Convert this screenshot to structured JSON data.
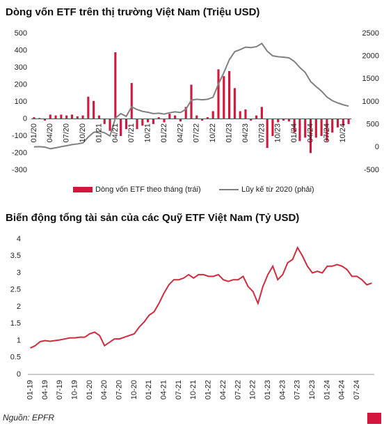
{
  "chart_data": [
    {
      "type": "combo",
      "title": "Dòng vốn ETF trên thị trường Việt Nam (Triệu USD)",
      "categories": [
        "01/20",
        null,
        null,
        "04/20",
        null,
        null,
        "07/20",
        null,
        null,
        "10/20",
        null,
        null,
        "01/21",
        null,
        null,
        "04/21",
        null,
        null,
        "07/21",
        null,
        null,
        "10/21",
        null,
        null,
        "01/22",
        null,
        null,
        "04/22",
        null,
        null,
        "07/22",
        null,
        null,
        "10/22",
        null,
        null,
        "01/23",
        null,
        null,
        "04/23",
        null,
        null,
        "07/23",
        null,
        null,
        "10/23",
        null,
        null,
        "01/24",
        null,
        null,
        "04/24",
        null,
        null,
        "07/24",
        null,
        null,
        "10/24",
        null
      ],
      "series": [
        {
          "name": "Dòng vốn ETF theo tháng (trái)",
          "type": "bar",
          "color": "#d3163c",
          "values": [
            10,
            5,
            -10,
            25,
            20,
            25,
            20,
            25,
            15,
            20,
            130,
            105,
            20,
            -30,
            -70,
            390,
            -100,
            -60,
            210,
            -60,
            -40,
            -20,
            -30,
            10,
            -20,
            30,
            20,
            -15,
            70,
            200,
            20,
            -10,
            10,
            45,
            290,
            250,
            280,
            180,
            45,
            55,
            -10,
            20,
            70,
            -170,
            -100,
            -20,
            -10,
            -15,
            -80,
            -130,
            -110,
            -200,
            -110,
            -100,
            -130,
            -80,
            -50,
            -40,
            -30
          ]
        },
        {
          "name": "Lũy kế từ 2020 (phải)",
          "type": "line",
          "axis": "y2",
          "color": "#808080",
          "values": [
            10,
            15,
            5,
            -30,
            -10,
            15,
            35,
            60,
            75,
            95,
            225,
            330,
            350,
            320,
            250,
            640,
            740,
            680,
            890,
            830,
            790,
            770,
            740,
            750,
            730,
            760,
            780,
            765,
            835,
            1035,
            1055,
            1045,
            1055,
            1100,
            1390,
            1640,
            1920,
            2100,
            2145,
            2200,
            2190,
            2210,
            2280,
            2110,
            2010,
            1990,
            1980,
            1965,
            1885,
            1755,
            1645,
            1445,
            1335,
            1235,
            1105,
            1025,
            975,
            935,
            905
          ]
        }
      ],
      "ylim": [
        -300,
        500
      ],
      "yticks": [
        -300,
        -200,
        -100,
        0,
        100,
        200,
        300,
        400,
        500
      ],
      "y2lim": [
        -500,
        2500
      ],
      "y2ticks": [
        -500,
        0,
        500,
        1000,
        1500,
        2000,
        2500
      ],
      "legend": "bottom"
    },
    {
      "type": "line",
      "title": "Biến động tổng tài sản của các Quỹ ETF Việt Nam (Tỷ USD)",
      "categories": [
        "01-19",
        null,
        null,
        "04-19",
        null,
        null,
        "07-19",
        null,
        null,
        "10-19",
        null,
        null,
        "01-20",
        null,
        null,
        "04-20",
        null,
        null,
        "07-20",
        null,
        null,
        "10-20",
        null,
        null,
        "01-21",
        null,
        null,
        "04-21",
        null,
        null,
        "07-21",
        null,
        null,
        "10-21",
        null,
        null,
        "01-22",
        null,
        null,
        "04-22",
        null,
        null,
        "07-22",
        null,
        null,
        "10-22",
        null,
        null,
        "01-23",
        null,
        null,
        "04-23",
        null,
        null,
        "07-23",
        null,
        null,
        "10-23",
        null,
        null,
        "01-24",
        null,
        null,
        "04-24",
        null,
        null,
        "07-24",
        null,
        null,
        null
      ],
      "series": [
        {
          "name": null,
          "color": "#d42a3c",
          "values": [
            0.78,
            0.85,
            0.97,
            1.0,
            0.98,
            1.0,
            1.02,
            1.05,
            1.08,
            1.08,
            1.1,
            1.1,
            1.2,
            1.25,
            1.15,
            0.85,
            0.95,
            1.05,
            1.05,
            1.1,
            1.15,
            1.2,
            1.4,
            1.55,
            1.75,
            1.85,
            2.1,
            2.4,
            2.65,
            2.8,
            2.8,
            2.85,
            2.95,
            2.85,
            2.95,
            2.95,
            2.9,
            2.9,
            2.95,
            2.8,
            2.75,
            2.8,
            2.8,
            2.9,
            2.6,
            2.45,
            2.1,
            2.6,
            2.95,
            3.2,
            2.8,
            2.95,
            3.3,
            3.4,
            3.75,
            3.5,
            3.2,
            3.0,
            3.05,
            3.0,
            3.2,
            3.2,
            3.25,
            3.2,
            3.1,
            2.9,
            2.9,
            2.8,
            2.65,
            2.7
          ]
        }
      ],
      "ylim": [
        0,
        4
      ],
      "yticks": [
        0,
        0.5,
        1,
        1.5,
        2,
        2.5,
        3,
        3.5,
        4
      ]
    }
  ],
  "footer": {
    "source": "Nguồn: EPFR"
  }
}
